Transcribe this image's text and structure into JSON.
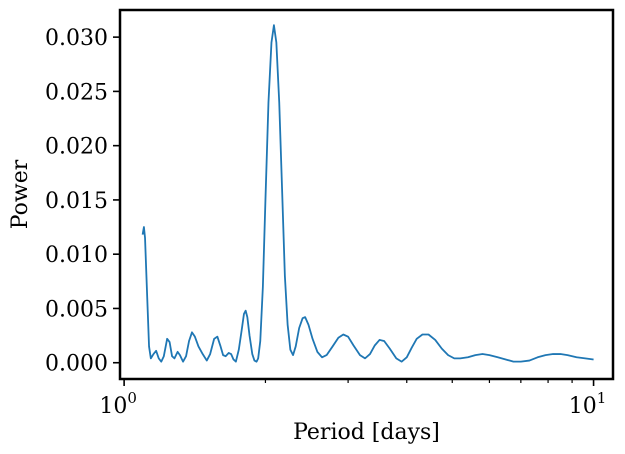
{
  "chart_data": {
    "type": "line",
    "title": "",
    "xlabel": "Period [days]",
    "ylabel": "Power",
    "xscale": "log",
    "xlim": [
      0.98,
      11.0
    ],
    "ylim": [
      -0.0015,
      0.0325
    ],
    "grid": false,
    "legend": "none",
    "x_major_ticks": [
      {
        "value": 1,
        "base": "10",
        "exp": "0"
      },
      {
        "value": 10,
        "base": "10",
        "exp": "1"
      }
    ],
    "y_ticks": [
      {
        "value": 0.0,
        "label": "0.000"
      },
      {
        "value": 0.005,
        "label": "0.005"
      },
      {
        "value": 0.01,
        "label": "0.010"
      },
      {
        "value": 0.015,
        "label": "0.015"
      },
      {
        "value": 0.02,
        "label": "0.020"
      },
      {
        "value": 0.025,
        "label": "0.025"
      },
      {
        "value": 0.03,
        "label": "0.030"
      }
    ],
    "series": [
      {
        "color": "#1f77b4",
        "points": [
          [
            1.095,
            0.0118
          ],
          [
            1.102,
            0.0125
          ],
          [
            1.108,
            0.0115
          ],
          [
            1.12,
            0.006
          ],
          [
            1.13,
            0.0015
          ],
          [
            1.14,
            0.0004
          ],
          [
            1.155,
            0.0008
          ],
          [
            1.17,
            0.0011
          ],
          [
            1.185,
            0.0004
          ],
          [
            1.2,
            0.0001
          ],
          [
            1.215,
            0.0006
          ],
          [
            1.235,
            0.0022
          ],
          [
            1.25,
            0.0019
          ],
          [
            1.265,
            0.0006
          ],
          [
            1.28,
            0.0004
          ],
          [
            1.3,
            0.001
          ],
          [
            1.315,
            0.0007
          ],
          [
            1.335,
            0.0001
          ],
          [
            1.355,
            0.0006
          ],
          [
            1.375,
            0.002
          ],
          [
            1.395,
            0.0028
          ],
          [
            1.415,
            0.0024
          ],
          [
            1.44,
            0.0015
          ],
          [
            1.47,
            0.0008
          ],
          [
            1.5,
            0.0002
          ],
          [
            1.525,
            0.0008
          ],
          [
            1.555,
            0.0022
          ],
          [
            1.58,
            0.0024
          ],
          [
            1.605,
            0.0015
          ],
          [
            1.625,
            0.0007
          ],
          [
            1.645,
            0.0006
          ],
          [
            1.67,
            0.0009
          ],
          [
            1.69,
            0.0008
          ],
          [
            1.71,
            0.0003
          ],
          [
            1.73,
            0.0001
          ],
          [
            1.755,
            0.0012
          ],
          [
            1.78,
            0.003
          ],
          [
            1.8,
            0.0045
          ],
          [
            1.815,
            0.0048
          ],
          [
            1.83,
            0.0042
          ],
          [
            1.85,
            0.0025
          ],
          [
            1.875,
            0.0008
          ],
          [
            1.895,
            0.0002
          ],
          [
            1.915,
            0.0001
          ],
          [
            1.93,
            0.0004
          ],
          [
            1.95,
            0.002
          ],
          [
            1.975,
            0.007
          ],
          [
            2.0,
            0.015
          ],
          [
            2.03,
            0.024
          ],
          [
            2.06,
            0.0295
          ],
          [
            2.085,
            0.0311
          ],
          [
            2.11,
            0.0295
          ],
          [
            2.14,
            0.024
          ],
          [
            2.17,
            0.016
          ],
          [
            2.2,
            0.008
          ],
          [
            2.23,
            0.0035
          ],
          [
            2.26,
            0.0012
          ],
          [
            2.29,
            0.0007
          ],
          [
            2.32,
            0.0015
          ],
          [
            2.36,
            0.0032
          ],
          [
            2.4,
            0.0041
          ],
          [
            2.43,
            0.0042
          ],
          [
            2.47,
            0.0035
          ],
          [
            2.52,
            0.0022
          ],
          [
            2.58,
            0.001
          ],
          [
            2.64,
            0.0005
          ],
          [
            2.7,
            0.0007
          ],
          [
            2.78,
            0.0015
          ],
          [
            2.86,
            0.0023
          ],
          [
            2.93,
            0.0026
          ],
          [
            3.0,
            0.0024
          ],
          [
            3.08,
            0.0016
          ],
          [
            3.18,
            0.0007
          ],
          [
            3.26,
            0.0004
          ],
          [
            3.34,
            0.0008
          ],
          [
            3.42,
            0.0016
          ],
          [
            3.5,
            0.0021
          ],
          [
            3.58,
            0.002
          ],
          [
            3.68,
            0.0013
          ],
          [
            3.8,
            0.0004
          ],
          [
            3.9,
            0.0001
          ],
          [
            4.0,
            0.0005
          ],
          [
            4.1,
            0.0014
          ],
          [
            4.2,
            0.0022
          ],
          [
            4.32,
            0.0026
          ],
          [
            4.45,
            0.0026
          ],
          [
            4.6,
            0.0021
          ],
          [
            4.75,
            0.0013
          ],
          [
            4.9,
            0.0007
          ],
          [
            5.05,
            0.0004
          ],
          [
            5.2,
            0.0004
          ],
          [
            5.4,
            0.0005
          ],
          [
            5.6,
            0.0007
          ],
          [
            5.8,
            0.0008
          ],
          [
            6.0,
            0.0007
          ],
          [
            6.25,
            0.0005
          ],
          [
            6.5,
            0.0003
          ],
          [
            6.75,
            0.0001
          ],
          [
            7.0,
            0.0001
          ],
          [
            7.3,
            0.0002
          ],
          [
            7.6,
            0.0005
          ],
          [
            7.9,
            0.0007
          ],
          [
            8.2,
            0.0008
          ],
          [
            8.5,
            0.0008
          ],
          [
            8.8,
            0.0007
          ],
          [
            9.2,
            0.0005
          ],
          [
            9.6,
            0.0004
          ],
          [
            10.0,
            0.0003
          ]
        ]
      }
    ]
  }
}
